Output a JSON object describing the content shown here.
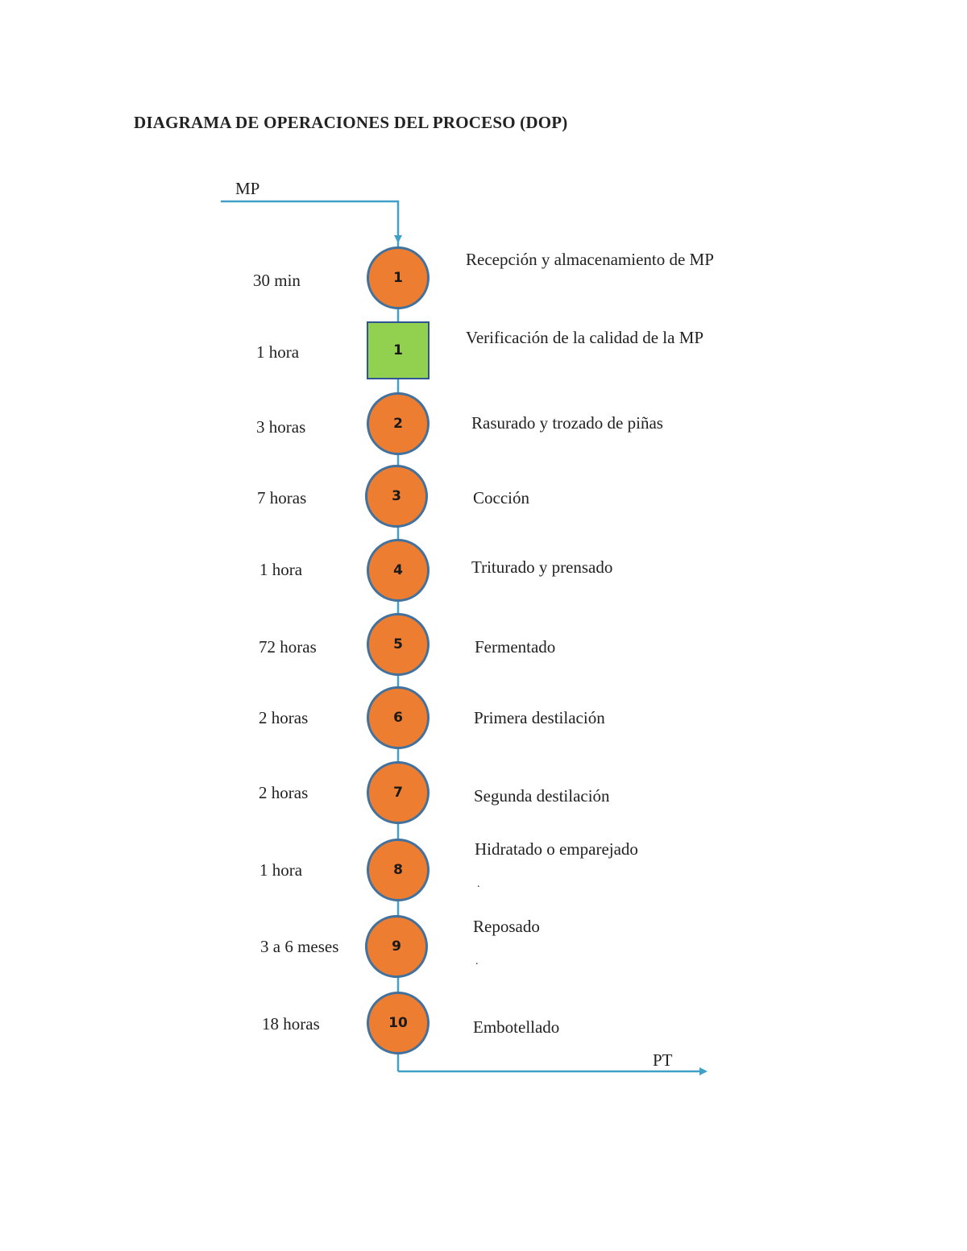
{
  "title": "DIAGRAMA DE OPERACIONES DEL PROCESO (DOP)",
  "flow": {
    "input_label": "MP",
    "output_label": "PT",
    "line_color": "#41a0c8",
    "operation_fill": "#ed7d31",
    "inspection_fill": "#92d050"
  },
  "steps": [
    {
      "type": "operation",
      "number": "1",
      "time": "30 min",
      "description": "Recepción y almacenamiento de MP"
    },
    {
      "type": "inspection",
      "number": "1",
      "time": "1 hora",
      "description": "Verificación de la calidad de la MP"
    },
    {
      "type": "operation",
      "number": "2",
      "time": "3 horas",
      "description": "Rasurado y trozado de piñas"
    },
    {
      "type": "operation",
      "number": "3",
      "time": "7 horas",
      "description": "Cocción"
    },
    {
      "type": "operation",
      "number": "4",
      "time": "1 hora",
      "description": "Triturado y prensado"
    },
    {
      "type": "operation",
      "number": "5",
      "time": "72 horas",
      "description": "Fermentado"
    },
    {
      "type": "operation",
      "number": "6",
      "time": "2 horas",
      "description": "Primera destilación"
    },
    {
      "type": "operation",
      "number": "7",
      "time": "2 horas",
      "description": "Segunda destilación"
    },
    {
      "type": "operation",
      "number": "8",
      "time": "1 hora",
      "description": "Hidratado o emparejado"
    },
    {
      "type": "operation",
      "number": "9",
      "time": "3 a 6 meses",
      "description": "Reposado"
    },
    {
      "type": "operation",
      "number": "10",
      "time": "18 horas",
      "description": "Embotellado"
    }
  ]
}
